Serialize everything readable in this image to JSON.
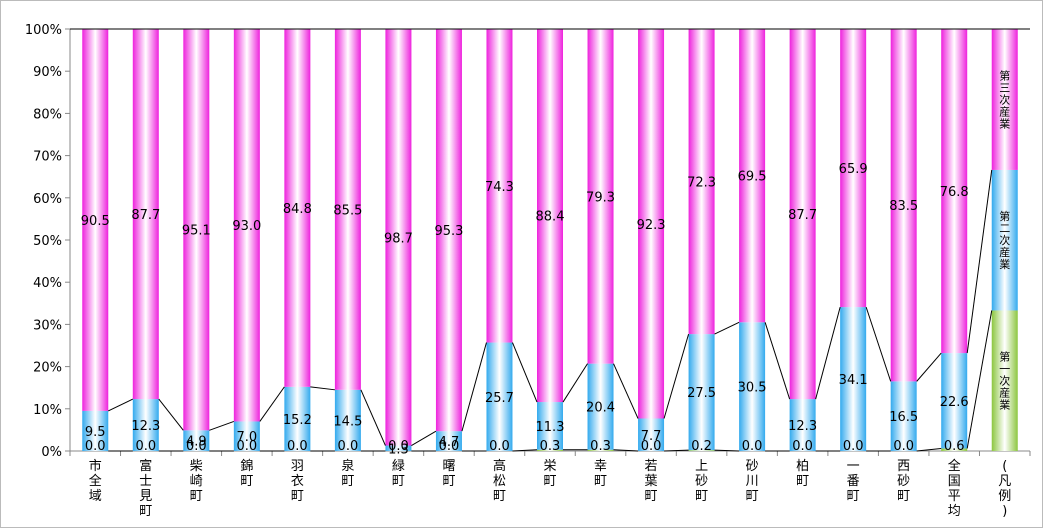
{
  "chart_data": {
    "type": "bar",
    "stacked": true,
    "normalized": true,
    "ylim": [
      0,
      100
    ],
    "yticks": [
      "0%",
      "10%",
      "20%",
      "30%",
      "40%",
      "50%",
      "60%",
      "70%",
      "80%",
      "90%",
      "100%"
    ],
    "categories": [
      "市全域",
      "富士見町",
      "柴崎町",
      "錦町",
      "羽衣町",
      "泉町",
      "緑町",
      "曙町",
      "高松町",
      "栄町",
      "幸町",
      "若葉町",
      "上砂町",
      "砂川町",
      "柏町",
      "一番町",
      "西砂町",
      "全国平均",
      "(凡例)"
    ],
    "series": [
      {
        "name": "第一次産業",
        "values": [
          0.0,
          0.0,
          0.0,
          0.0,
          0.0,
          0.0,
          0.0,
          0.0,
          0.0,
          0.3,
          0.3,
          0.0,
          0.2,
          0.0,
          0.0,
          0.0,
          0.0,
          0.6,
          33.3
        ],
        "labels": [
          "0.0",
          "0.0",
          "0.0",
          "0.0",
          "0.0",
          "0.0",
          "0.0",
          "0.0",
          "0.0",
          "0.3",
          "0.3",
          "0.0",
          "0.2",
          "0.0",
          "0.0",
          "0.0",
          "0.0",
          "0.6",
          ""
        ],
        "color": "#8cc63f"
      },
      {
        "name": "第二次産業",
        "values": [
          9.5,
          12.3,
          4.9,
          7.0,
          15.2,
          14.5,
          1.3,
          4.7,
          25.7,
          11.3,
          20.4,
          7.7,
          27.5,
          30.5,
          12.3,
          34.1,
          16.5,
          22.6,
          33.3
        ],
        "labels": [
          "9.5",
          "12.3",
          "4.9",
          "7.0",
          "15.2",
          "14.5",
          "1.3",
          "4.7",
          "25.7",
          "11.3",
          "20.4",
          "7.7",
          "27.5",
          "30.5",
          "12.3",
          "34.1",
          "16.5",
          "22.6",
          ""
        ],
        "color": "#33aaee"
      },
      {
        "name": "第三次産業",
        "values": [
          90.5,
          87.7,
          95.1,
          93.0,
          84.8,
          85.5,
          98.7,
          95.3,
          74.3,
          88.4,
          79.3,
          92.3,
          72.3,
          69.5,
          87.7,
          65.9,
          83.5,
          76.8,
          33.4
        ],
        "labels": [
          "90.5",
          "87.7",
          "95.1",
          "93.0",
          "84.8",
          "85.5",
          "98.7",
          "95.3",
          "74.3",
          "88.4",
          "79.3",
          "92.3",
          "72.3",
          "69.5",
          "87.7",
          "65.9",
          "83.5",
          "76.8",
          ""
        ],
        "color": "#ee22dd"
      }
    ],
    "legend_labels": [
      "第一次産業",
      "第二次産業",
      "第三次産業"
    ],
    "series_lines": true,
    "grid": false
  }
}
